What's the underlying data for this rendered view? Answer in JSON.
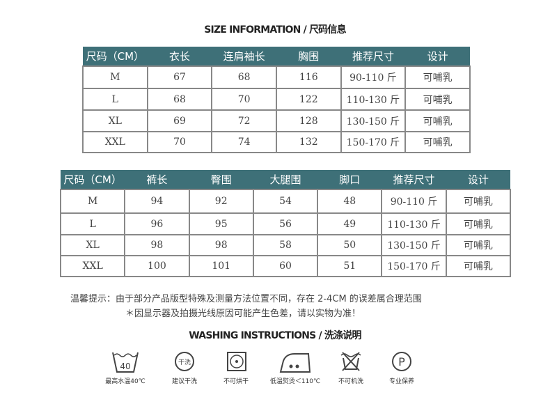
{
  "size_title": "SIZE INFORMATION / 尺码信息",
  "top_table": {
    "headers": [
      "尺码（CM）",
      "衣长",
      "连肩袖长",
      "胸围",
      "推荐尺寸",
      "设计"
    ],
    "rows": [
      [
        "M",
        "67",
        "68",
        "116",
        "90-110 斤",
        "可哺乳"
      ],
      [
        "L",
        "68",
        "70",
        "122",
        "110-130 斤",
        "可哺乳"
      ],
      [
        "XL",
        "69",
        "72",
        "128",
        "130-150 斤",
        "可哺乳"
      ],
      [
        "XXL",
        "70",
        "74",
        "132",
        "150-170 斤",
        "可哺乳"
      ]
    ]
  },
  "bottom_table": {
    "headers": [
      "尺码（CM）",
      "裤长",
      "臀围",
      "大腿围",
      "脚口",
      "推荐尺寸",
      "设计"
    ],
    "rows": [
      [
        "M",
        "94",
        "92",
        "54",
        "48",
        "90-110 斤",
        "可哺乳"
      ],
      [
        "L",
        "96",
        "95",
        "56",
        "49",
        "110-130 斤",
        "可哺乳"
      ],
      [
        "XL",
        "98",
        "98",
        "58",
        "50",
        "130-150 斤",
        "可哺乳"
      ],
      [
        "XXL",
        "100",
        "101",
        "60",
        "51",
        "150-170 斤",
        "可哺乳"
      ]
    ]
  },
  "notes": [
    "温馨提示：由于部分产品版型特殊及测量方法位置不同，存在 2-4CM 的误差属合理范围",
    "＊因显示器及拍摄光线原因可能产生色差，请以实物为准！"
  ],
  "wash_title": "WASHING INSTRUCTIONS / 洗涤说明",
  "wash_icons": [
    {
      "icon": "wash-40-icon",
      "label": "最高水温40℃",
      "text": "40"
    },
    {
      "icon": "dry-clean-icon",
      "label": "建议干洗",
      "text": "干洗"
    },
    {
      "icon": "no-tumble-dry-icon",
      "label": "不可烘干"
    },
    {
      "icon": "iron-low-icon",
      "label": "低温熨烫＜110℃"
    },
    {
      "icon": "no-machine-wash-icon",
      "label": "不可机洗"
    },
    {
      "icon": "professional-care-icon",
      "label": "专业保养",
      "text": "P"
    }
  ],
  "colors": {
    "header": "#3e7078",
    "border": "#888888"
  }
}
